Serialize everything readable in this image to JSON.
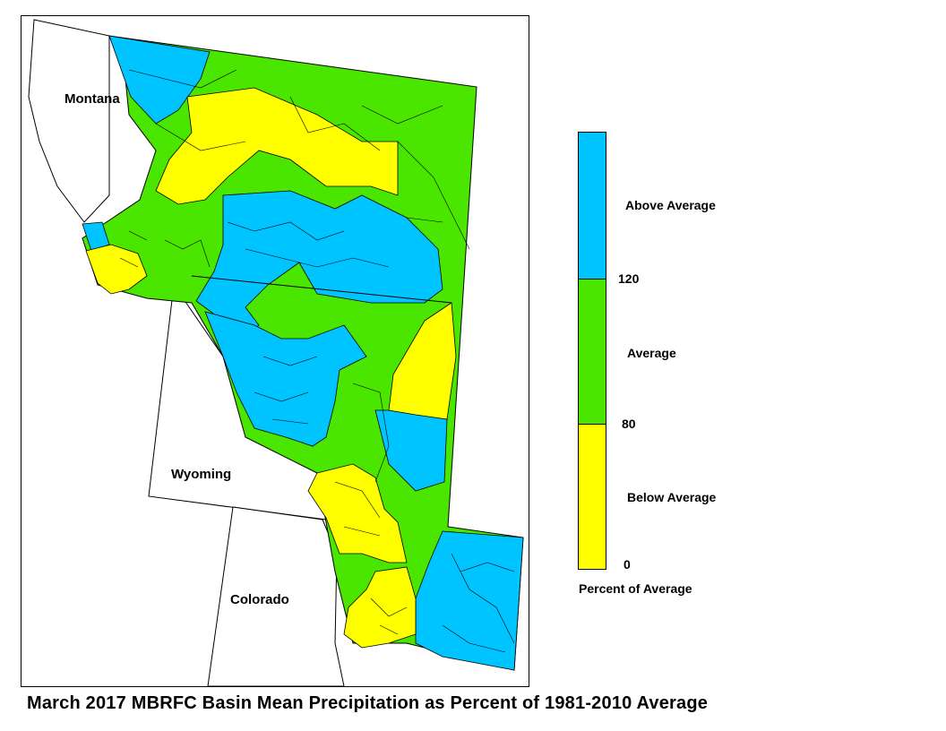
{
  "map": {
    "state_labels": {
      "montana": "Montana",
      "wyoming": "Wyoming",
      "colorado": "Colorado"
    }
  },
  "legend": {
    "categories": [
      {
        "label": "Above Average",
        "color": "#00c4ff",
        "range": [
          120,
          null
        ]
      },
      {
        "label": "Average",
        "color": "#4ae600",
        "range": [
          80,
          120
        ]
      },
      {
        "label": "Below Average",
        "color": "#ffff00",
        "range": [
          0,
          80
        ]
      }
    ],
    "breaks": {
      "high": "120",
      "mid": "80",
      "low": "0"
    },
    "title": "Percent of Average"
  },
  "caption": "March 2017 MBRFC Basin Mean Precipitation as Percent of 1981-2010 Average"
}
